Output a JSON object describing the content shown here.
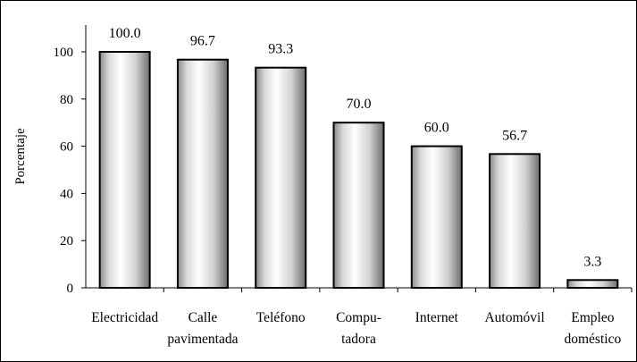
{
  "chart_data": {
    "type": "bar",
    "title": "",
    "xlabel": "",
    "ylabel": "Porcentaje",
    "ylim": [
      0,
      100
    ],
    "yticks": [
      0,
      20,
      40,
      60,
      80,
      100
    ],
    "grid": false,
    "legend": "none",
    "categories": [
      [
        "Electricidad"
      ],
      [
        "Calle",
        "pavimentada"
      ],
      [
        "Teléfono"
      ],
      [
        "Compu-",
        "tadora"
      ],
      [
        "Internet"
      ],
      [
        "Automóvil"
      ],
      [
        "Empleo",
        "doméstico"
      ]
    ],
    "values": [
      100.0,
      96.7,
      93.3,
      70.0,
      60.0,
      56.7,
      3.3
    ],
    "value_labels": [
      "100.0",
      "96.7",
      "93.3",
      "70.0",
      "60.0",
      "56.7",
      "3.3"
    ],
    "bar_style": "cylindrical gray gradient with black outline"
  }
}
